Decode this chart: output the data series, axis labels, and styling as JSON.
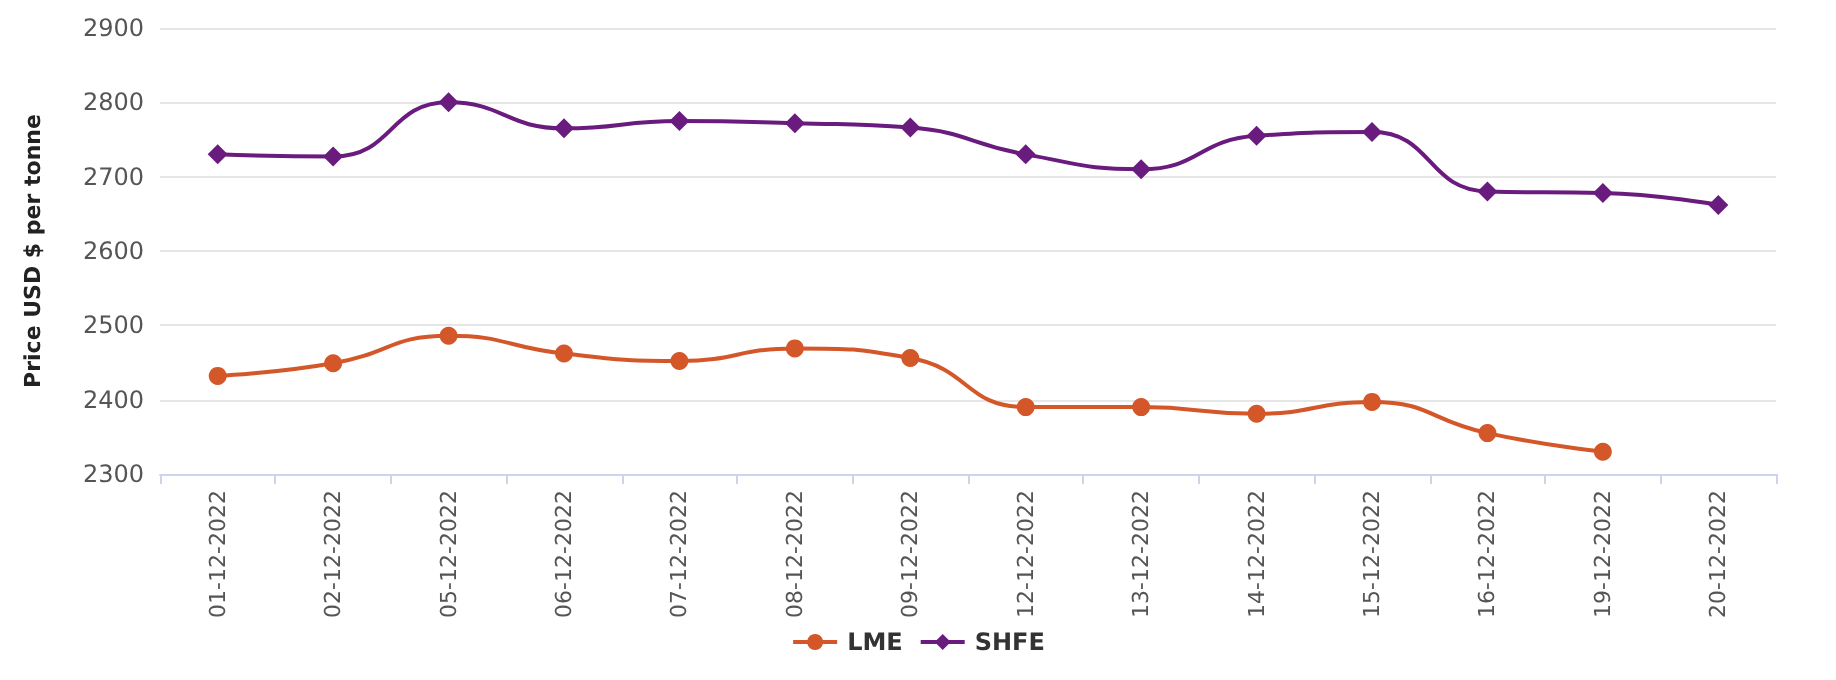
{
  "chart_data": {
    "type": "line",
    "ylabel": "Price USD $ per tonne",
    "categories": [
      "01-12-2022",
      "02-12-2022",
      "05-12-2022",
      "06-12-2022",
      "07-12-2022",
      "08-12-2022",
      "09-12-2022",
      "12-12-2022",
      "13-12-2022",
      "14-12-2022",
      "15-12-2022",
      "16-12-2022",
      "19-12-2022",
      "20-12-2022"
    ],
    "series": [
      {
        "name": "LME",
        "color": "#d4572a",
        "marker": "circle",
        "values": [
          2432,
          2449,
          2486,
          2462,
          2452,
          2469,
          2456,
          2390,
          2390,
          2381,
          2397,
          2355,
          2330,
          null
        ]
      },
      {
        "name": "SHFE",
        "color": "#6a1b7e",
        "marker": "diamond",
        "values": [
          2730,
          2727,
          2800,
          2765,
          2775,
          2772,
          2766,
          2730,
          2710,
          2755,
          2760,
          2680,
          2678,
          2662
        ]
      }
    ],
    "ylim": [
      2300,
      2900
    ],
    "yticks": [
      2300,
      2400,
      2500,
      2600,
      2700,
      2800,
      2900
    ],
    "grid": "y",
    "legend": "bottom"
  }
}
